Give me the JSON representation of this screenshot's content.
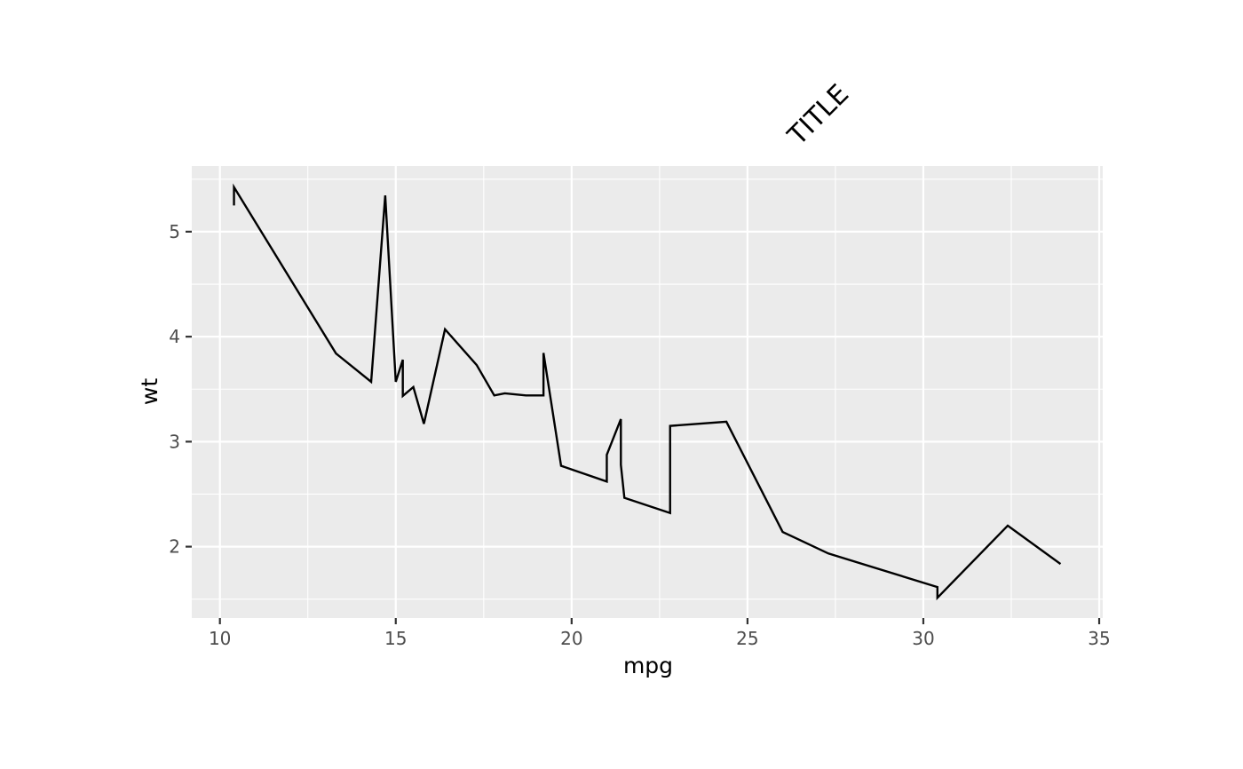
{
  "chart_data": {
    "type": "line",
    "title": "TITLE",
    "xlabel": "mpg",
    "ylabel": "wt",
    "xlim": [
      9.2,
      35.1
    ],
    "ylim": [
      1.32,
      5.625
    ],
    "x_ticks": [
      10,
      15,
      20,
      25,
      30,
      35
    ],
    "x_tick_labels": [
      "10",
      "15",
      "20",
      "25",
      "30",
      "35"
    ],
    "x_minor_ticks": [
      12.5,
      17.5,
      22.5,
      27.5,
      32.5
    ],
    "y_ticks": [
      2,
      3,
      4,
      5
    ],
    "y_tick_labels": [
      "2",
      "3",
      "4",
      "5"
    ],
    "y_minor_ticks": [
      1.5,
      2.5,
      3.5,
      4.5,
      5.5
    ],
    "grid": true,
    "colors": {
      "panel_background": "#ebebeb",
      "grid": "#ffffff",
      "line": "#000000",
      "tick_text": "#4d4d4d",
      "tick_mark": "#333333"
    },
    "series": [
      {
        "x": [
          10.4,
          10.4,
          13.3,
          14.3,
          14.7,
          15.0,
          15.2,
          15.2,
          15.5,
          15.8,
          16.4,
          17.3,
          17.8,
          18.1,
          18.7,
          19.2,
          19.2,
          19.7,
          21.0,
          21.0,
          21.4,
          21.4,
          21.5,
          22.8,
          22.8,
          24.4,
          26.0,
          27.3,
          30.4,
          30.4,
          32.4,
          33.9
        ],
        "y": [
          5.25,
          5.424,
          3.84,
          3.57,
          5.345,
          3.57,
          3.78,
          3.435,
          3.52,
          3.17,
          4.07,
          3.73,
          3.44,
          3.46,
          3.44,
          3.44,
          3.845,
          2.77,
          2.62,
          2.875,
          3.215,
          2.78,
          2.465,
          2.32,
          3.15,
          3.19,
          2.14,
          1.935,
          1.615,
          1.513,
          2.2,
          1.835
        ]
      }
    ]
  }
}
